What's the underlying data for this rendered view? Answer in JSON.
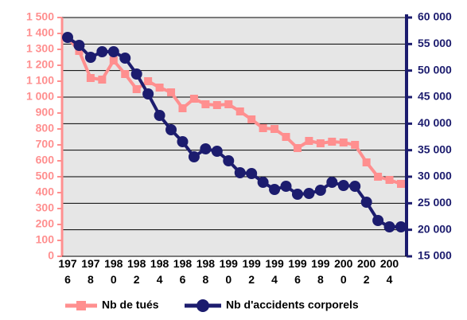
{
  "chart_data": {
    "type": "line",
    "categories": [
      "1976",
      null,
      "1978",
      null,
      "1980",
      null,
      "1982",
      null,
      "1984",
      null,
      "1986",
      null,
      "1988",
      null,
      "1990",
      null,
      "1992",
      null,
      "1994",
      null,
      "1996",
      null,
      "1998",
      null,
      "2000",
      null,
      "2002",
      null,
      "2004",
      null
    ],
    "series": [
      {
        "name": "Nb de tués",
        "color": "#ff8f8f",
        "values": [
          1375,
          1290,
          1120,
          1110,
          1230,
          1145,
          1050,
          1100,
          1060,
          1030,
          930,
          990,
          955,
          950,
          955,
          910,
          860,
          805,
          800,
          750,
          680,
          725,
          710,
          720,
          715,
          700,
          590,
          500,
          480,
          455
        ]
      },
      {
        "name": "Nb d'accidents corporels",
        "color": "#1c1c6e",
        "axis": "y2",
        "values": [
          56250,
          54750,
          52500,
          53550,
          53550,
          52350,
          49350,
          45600,
          41550,
          38850,
          36600,
          33750,
          35250,
          34800,
          33000,
          30750,
          30600,
          28950,
          27600,
          28200,
          26700,
          26850,
          27450,
          28950,
          28350,
          28200,
          25200,
          21750,
          20550,
          20550
        ]
      }
    ],
    "ylim": [
      0,
      1500
    ],
    "yticks": [
      0,
      100,
      200,
      300,
      400,
      500,
      600,
      700,
      800,
      900,
      {
        "value": 1000,
        "label": "1 000"
      },
      {
        "value": 1100,
        "label": "1 100"
      },
      {
        "value": 1200,
        "label": "1 200"
      },
      {
        "value": 1300,
        "label": "1 300"
      },
      {
        "value": 1400,
        "label": "1 400"
      },
      {
        "value": 1500,
        "label": "1 500"
      }
    ],
    "y2lim": [
      15000,
      60000
    ],
    "y2ticks": [
      {
        "value": 15000,
        "label": "15 000"
      },
      {
        "value": 20000,
        "label": "20 000"
      },
      {
        "value": 25000,
        "label": "25 000"
      },
      {
        "value": 30000,
        "label": "30 000"
      },
      {
        "value": 35000,
        "label": "35 000"
      },
      {
        "value": 40000,
        "label": "40 000"
      },
      {
        "value": 45000,
        "label": "45 000"
      },
      {
        "value": 50000,
        "label": "50 000"
      },
      {
        "value": 55000,
        "label": "55 000"
      },
      {
        "value": 60000,
        "label": "60 000"
      }
    ],
    "grid": true,
    "legend": "bottom"
  }
}
